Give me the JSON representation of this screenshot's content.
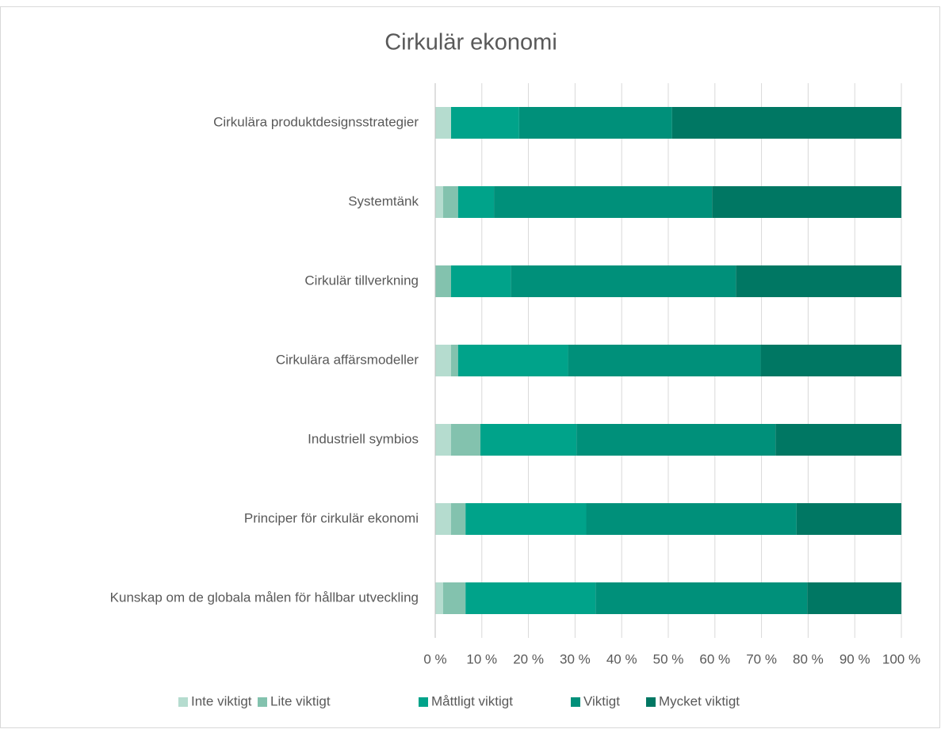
{
  "chart_data": {
    "type": "stacked_bar_horizontal",
    "title": "Cirkulär ekonomi",
    "categories": [
      "Cirkulära produktdesignsstrategier",
      "Systemtänk",
      "Cirkulär tillverkning",
      "Cirkulära affärsmodeller",
      "Industriell symbios",
      "Principer för cirkulär ekonomi",
      "Kunskap om de globala målen för hållbar utveckling"
    ],
    "series": [
      {
        "name": "Inte viktigt",
        "color": "#b5dccf",
        "values": [
          3.4,
          1.7,
          0,
          3.4,
          3.4,
          3.4,
          1.7
        ]
      },
      {
        "name": "Lite viktigt",
        "color": "#83c2ae",
        "values": [
          0,
          3.2,
          3.4,
          1.5,
          6.3,
          3.1,
          4.8
        ]
      },
      {
        "name": "Måttligt viktigt",
        "color": "#00a38a",
        "values": [
          14.6,
          7.7,
          12.8,
          23.6,
          20.6,
          25.9,
          27.9
        ]
      },
      {
        "name": "Viktigt",
        "color": "#00907a",
        "values": [
          32.8,
          46.8,
          48.3,
          41.3,
          42.7,
          45.1,
          45.4
        ]
      },
      {
        "name": "Mycket viktigt",
        "color": "#007763",
        "values": [
          49.2,
          40.6,
          35.5,
          30.2,
          27.0,
          22.5,
          20.2
        ]
      }
    ],
    "xlim": [
      0,
      100
    ],
    "xticks": [
      {
        "value": 0,
        "label": "0 %"
      },
      {
        "value": 10,
        "label": "10 %"
      },
      {
        "value": 20,
        "label": "20 %"
      },
      {
        "value": 30,
        "label": "30 %"
      },
      {
        "value": 40,
        "label": "40 %"
      },
      {
        "value": 50,
        "label": "50 %"
      },
      {
        "value": 60,
        "label": "60 %"
      },
      {
        "value": 70,
        "label": "70 %"
      },
      {
        "value": 80,
        "label": "80 %"
      },
      {
        "value": 90,
        "label": "90 %"
      },
      {
        "value": 100,
        "label": "100 %"
      }
    ],
    "grid": true,
    "legend": "bottom"
  }
}
